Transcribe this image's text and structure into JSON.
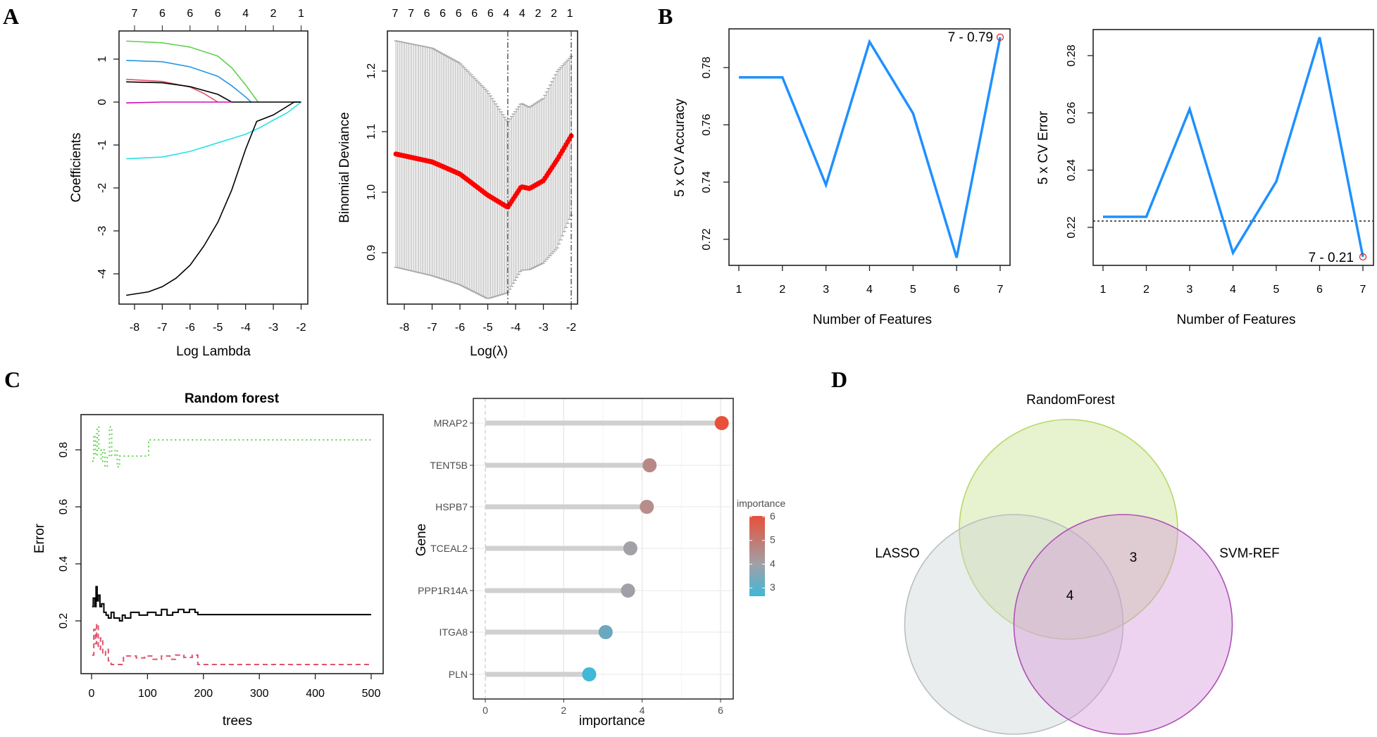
{
  "panels": {
    "A": "A",
    "B": "B",
    "C": "C",
    "D": "D"
  },
  "colors": {
    "cv_line": "#1e90ff",
    "highlight": "#e41a1c",
    "deviance_points": "#ff0000"
  },
  "chart_data": [
    {
      "type": "line",
      "xlabel": "Log Lambda",
      "ylabel": "Coefficients",
      "x_ticks": [
        "-8",
        "-7",
        "-6",
        "-5",
        "-4",
        "-3",
        "-2"
      ],
      "y_ticks": [
        "-4",
        "-3",
        "-2",
        "-1",
        "0",
        "1"
      ],
      "top_labels": [
        "7",
        "6",
        "6",
        "6",
        "4",
        "2",
        "1"
      ],
      "xlim": [
        -8.55,
        -1.75
      ],
      "ylim": [
        -4.8,
        1.65
      ],
      "series": [
        {
          "color": "#61d04f",
          "points": [
            [
              -8.3,
              1.42
            ],
            [
              -7,
              1.38
            ],
            [
              -6,
              1.28
            ],
            [
              -5,
              1.07
            ],
            [
              -4.5,
              0.8
            ],
            [
              -4,
              0.4
            ],
            [
              -3.55,
              0
            ]
          ]
        },
        {
          "color": "#2297e6",
          "points": [
            [
              -8.3,
              0.97
            ],
            [
              -7,
              0.94
            ],
            [
              -6,
              0.82
            ],
            [
              -5,
              0.6
            ],
            [
              -4.5,
              0.38
            ],
            [
              -4,
              0.12
            ],
            [
              -3.8,
              0
            ]
          ]
        },
        {
          "color": "#df536b",
          "points": [
            [
              -8.3,
              0.53
            ],
            [
              -7,
              0.48
            ],
            [
              -6,
              0.35
            ],
            [
              -5.5,
              0.2
            ],
            [
              -5,
              0
            ]
          ]
        },
        {
          "color": "#000000",
          "points": [
            [
              -8.3,
              0.47
            ],
            [
              -7,
              0.45
            ],
            [
              -6,
              0.36
            ],
            [
              -5,
              0.18
            ],
            [
              -4.5,
              0
            ],
            [
              -2,
              0
            ]
          ]
        },
        {
          "color": "#cd0bbc",
          "points": [
            [
              -8.3,
              -0.02
            ],
            [
              -7,
              0
            ],
            [
              -4.5,
              0
            ]
          ]
        },
        {
          "color": "#28e2e5",
          "points": [
            [
              -8.3,
              -1.32
            ],
            [
              -7,
              -1.28
            ],
            [
              -6,
              -1.15
            ],
            [
              -5,
              -0.95
            ],
            [
              -4,
              -0.75
            ],
            [
              -3.5,
              -0.6
            ],
            [
              -3,
              -0.42
            ],
            [
              -2.5,
              -0.25
            ],
            [
              -2,
              0
            ]
          ]
        },
        {
          "color": "#000000",
          "points": [
            [
              -8.3,
              -4.5
            ],
            [
              -7.5,
              -4.42
            ],
            [
              -7,
              -4.3
            ],
            [
              -6.5,
              -4.1
            ],
            [
              -6,
              -3.8
            ],
            [
              -5.5,
              -3.35
            ],
            [
              -5,
              -2.8
            ],
            [
              -4.5,
              -2.05
            ],
            [
              -4,
              -1.1
            ],
            [
              -3.6,
              -0.45
            ],
            [
              -3,
              -0.3
            ],
            [
              -2.25,
              0
            ],
            [
              -2,
              0
            ]
          ]
        }
      ]
    },
    {
      "type": "scatter",
      "xlabel": "Log(λ)",
      "ylabel": "Binomial Deviance",
      "x_ticks": [
        "-8",
        "-7",
        "-6",
        "-5",
        "-4",
        "-3",
        "-2"
      ],
      "y_ticks": [
        "0.9",
        "1.0",
        "1.1",
        "1.2"
      ],
      "top_labels": [
        "7",
        "7",
        "6",
        "6",
        "6",
        "6",
        "6",
        "4",
        "4",
        "2",
        "2",
        "1"
      ],
      "xlim": [
        -8.6,
        -1.8
      ],
      "ylim": [
        0.82,
        1.27
      ],
      "vlines": [
        -4.28,
        -2.0
      ],
      "log_lambda": [
        -8.3,
        -7,
        -6,
        -5,
        -4.28,
        -3.8,
        -3.5,
        -3,
        -2.5,
        -2
      ],
      "deviance": [
        1.063,
        1.05,
        1.03,
        0.995,
        0.975,
        1.009,
        1.006,
        1.019,
        1.054,
        1.093
      ],
      "upper": [
        1.25,
        1.238,
        1.213,
        1.166,
        1.116,
        1.147,
        1.14,
        1.155,
        1.2,
        1.224
      ]
    },
    {
      "type": "line",
      "xlabel": "Number of Features",
      "ylabel": "5 x CV Accuracy",
      "x": [
        1,
        2,
        3,
        4,
        5,
        6,
        7
      ],
      "y": [
        0.7766,
        0.7766,
        0.739,
        0.789,
        0.764,
        0.7136,
        0.7906
      ],
      "x_ticks": [
        "1",
        "2",
        "3",
        "4",
        "5",
        "6",
        "7"
      ],
      "y_ticks": [
        "0.72",
        "0.74",
        "0.76",
        "0.78"
      ],
      "annotation": "7 - 0.79"
    },
    {
      "type": "line",
      "xlabel": "Number of Features",
      "ylabel": "5 x CV Error",
      "x": [
        1,
        2,
        3,
        4,
        5,
        6,
        7
      ],
      "y": [
        0.2237,
        0.2237,
        0.2613,
        0.2111,
        0.236,
        0.2864,
        0.2097
      ],
      "x_ticks": [
        "1",
        "2",
        "3",
        "4",
        "5",
        "6",
        "7"
      ],
      "y_ticks": [
        "0.22",
        "0.24",
        "0.26",
        "0.28"
      ],
      "hline": 0.2222,
      "annotation": "7 - 0.21"
    },
    {
      "type": "line",
      "title": "Random forest",
      "xlabel": "trees",
      "ylabel": "Error",
      "x_ticks": [
        "0",
        "100",
        "200",
        "300",
        "400",
        "500"
      ],
      "y_ticks": [
        "0.2",
        "0.4",
        "0.6",
        "0.8"
      ],
      "series": [
        {
          "color": "#000000",
          "dash": "solid",
          "points": [
            [
              1,
              0.25
            ],
            [
              3,
              0.28
            ],
            [
              6,
              0.25
            ],
            [
              8,
              0.32
            ],
            [
              10,
              0.27
            ],
            [
              12,
              0.29
            ],
            [
              15,
              0.25
            ],
            [
              18,
              0.26
            ],
            [
              22,
              0.23
            ],
            [
              26,
              0.22
            ],
            [
              30,
              0.21
            ],
            [
              35,
              0.23
            ],
            [
              40,
              0.21
            ],
            [
              50,
              0.2
            ],
            [
              55,
              0.22
            ],
            [
              60,
              0.21
            ],
            [
              70,
              0.23
            ],
            [
              85,
              0.22
            ],
            [
              100,
              0.23
            ],
            [
              115,
              0.22
            ],
            [
              125,
              0.24
            ],
            [
              135,
              0.22
            ],
            [
              145,
              0.23
            ],
            [
              155,
              0.24
            ],
            [
              165,
              0.23
            ],
            [
              175,
              0.24
            ],
            [
              185,
              0.23
            ],
            [
              190,
              0.222
            ],
            [
              500,
              0.222
            ]
          ]
        },
        {
          "color": "#df536b",
          "dash": "dashed",
          "points": [
            [
              1,
              0.08
            ],
            [
              4,
              0.17
            ],
            [
              7,
              0.12
            ],
            [
              9,
              0.19
            ],
            [
              12,
              0.1
            ],
            [
              16,
              0.14
            ],
            [
              20,
              0.08
            ],
            [
              25,
              0.1
            ],
            [
              30,
              0.06
            ],
            [
              35,
              0.047
            ],
            [
              55,
              0.047
            ],
            [
              57,
              0.077
            ],
            [
              80,
              0.07
            ],
            [
              95,
              0.077
            ],
            [
              110,
              0.065
            ],
            [
              125,
              0.077
            ],
            [
              140,
              0.065
            ],
            [
              150,
              0.08
            ],
            [
              165,
              0.072
            ],
            [
              180,
              0.08
            ],
            [
              190,
              0.047
            ],
            [
              500,
              0.047
            ]
          ]
        },
        {
          "color": "#61d04f",
          "dash": "dotted",
          "points": [
            [
              1,
              0.76
            ],
            [
              4,
              0.85
            ],
            [
              7,
              0.78
            ],
            [
              10,
              0.88
            ],
            [
              13,
              0.8
            ],
            [
              17,
              0.76
            ],
            [
              20,
              0.8
            ],
            [
              24,
              0.74
            ],
            [
              28,
              0.78
            ],
            [
              32,
              0.88
            ],
            [
              36,
              0.78
            ],
            [
              42,
              0.8
            ],
            [
              46,
              0.74
            ],
            [
              50,
              0.778
            ],
            [
              100,
              0.778
            ],
            [
              102,
              0.835
            ],
            [
              500,
              0.835
            ]
          ]
        }
      ]
    },
    {
      "type": "scatter",
      "xlabel": "importance",
      "ylabel": "Gene",
      "x_ticks": [
        "0",
        "2",
        "4",
        "6"
      ],
      "categories": [
        "MRAP2",
        "TENT5B",
        "HSPB7",
        "TCEAL2",
        "PPP1R14A",
        "ITGA8",
        "PLN"
      ],
      "values": [
        6.03,
        4.19,
        4.12,
        3.7,
        3.64,
        3.07,
        2.65
      ],
      "point_colors": [
        "#e8503a",
        "#b88886",
        "#b88e8c",
        "#a3a1a8",
        "#a0a0a8",
        "#6aa8c0",
        "#40b8d6"
      ],
      "legend": {
        "title": "importance",
        "ticks": [
          "6",
          "5",
          "4",
          "3"
        ],
        "position": "right",
        "gradient": [
          "#e8503a",
          "#a0a0a8",
          "#40b8d6"
        ]
      }
    },
    {
      "type": "venn",
      "sets": [
        {
          "name": "RandomForest",
          "fill": "#c5e08a",
          "stroke": "#b5d86a"
        },
        {
          "name": "LASSO",
          "fill": "#cdd4d4",
          "stroke": "#b7bfbf"
        },
        {
          "name": "SVM-REF",
          "fill": "#d595d8",
          "stroke": "#b050b8"
        }
      ],
      "region_counts": [
        {
          "sets": [
            "RandomForest",
            "SVM-REF"
          ],
          "count": "3"
        },
        {
          "sets": [
            "RandomForest",
            "LASSO",
            "SVM-REF"
          ],
          "count": "4"
        }
      ]
    }
  ]
}
